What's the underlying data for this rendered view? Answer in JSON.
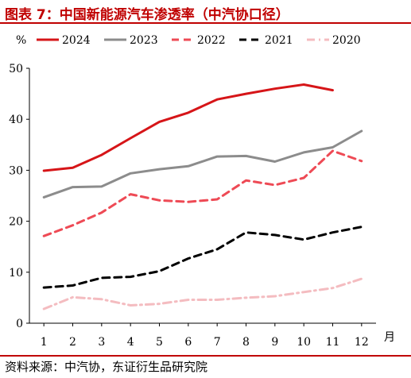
{
  "title": "图表 7：中国新能源汽车渗透率（中汽协口径）",
  "source": "资料来源：中汽协，东证衍生品研究院",
  "chart_data": {
    "type": "line",
    "unit_label": "%",
    "xlabel": "月",
    "ylabel": "",
    "x": [
      1,
      2,
      3,
      4,
      5,
      6,
      7,
      8,
      9,
      10,
      11,
      12
    ],
    "x_tick_labels": [
      "1",
      "2",
      "3",
      "4",
      "5",
      "6",
      "7",
      "8",
      "9",
      "10",
      "11",
      "12"
    ],
    "y_ticks": [
      0,
      10,
      20,
      30,
      40,
      50
    ],
    "y_tick_labels": [
      "0",
      "10",
      "20",
      "30",
      "40",
      "50"
    ],
    "ylim": [
      0,
      50
    ],
    "xlim": [
      0.5,
      12.5
    ],
    "grid": false,
    "legend_position": "top",
    "series": [
      {
        "name": "2024",
        "color": "#d61518",
        "style": "solid",
        "values": [
          29.9,
          30.5,
          33,
          36.3,
          39.5,
          41.3,
          43.9,
          45,
          46,
          46.8,
          45.7,
          null
        ]
      },
      {
        "name": "2023",
        "color": "#8c8c8c",
        "style": "solid",
        "values": [
          24.7,
          26.7,
          26.8,
          29.4,
          30.2,
          30.8,
          32.7,
          32.8,
          31.7,
          33.5,
          34.5,
          37.7
        ]
      },
      {
        "name": "2022",
        "color": "#ee4a55",
        "style": "dashed",
        "values": [
          17.1,
          19.2,
          21.7,
          25.3,
          24.1,
          23.8,
          24.3,
          28,
          27.1,
          28.5,
          33.8,
          31.8
        ]
      },
      {
        "name": "2021",
        "color": "#000000",
        "style": "dashed",
        "values": [
          7,
          7.4,
          8.9,
          9.1,
          10.2,
          12.7,
          14.5,
          17.8,
          17.3,
          16.4,
          17.8,
          18.9
        ]
      },
      {
        "name": "2020",
        "color": "#f4bcc0",
        "style": "dashdot",
        "values": [
          2.8,
          5.1,
          4.7,
          3.5,
          3.8,
          4.6,
          4.6,
          5,
          5.3,
          6.1,
          6.9,
          8.7
        ]
      }
    ]
  }
}
